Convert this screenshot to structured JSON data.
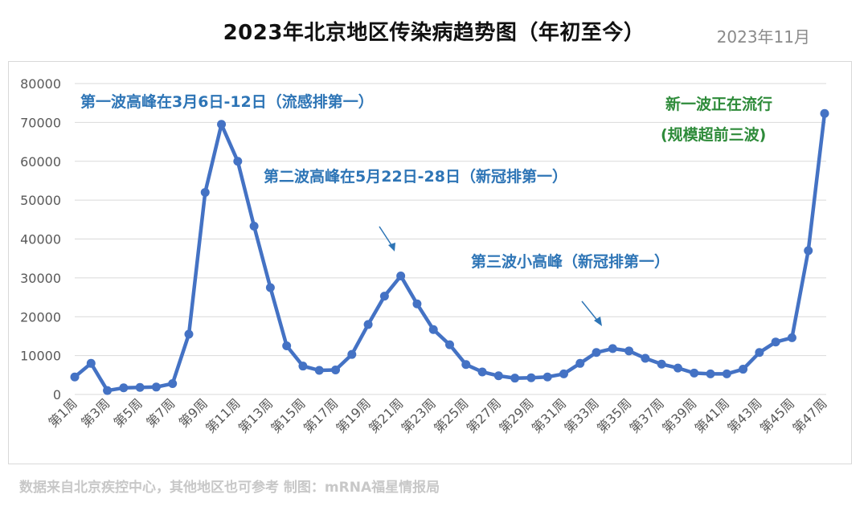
{
  "title": "2023年北京地区传染病趋势图（年初至今）",
  "date": "2023年11月",
  "source": "数据来自北京疾控中心，其他地区也可参考  制图：mRNA福星情报局",
  "colors": {
    "line": "#4472c4",
    "annotation_blue": "#2e75b6",
    "annotation_green": "#2e8b3a",
    "grid": "#d9d9d9",
    "axis_text": "#595959"
  },
  "chart_data": {
    "type": "line",
    "title": "2023年北京地区传染病趋势图（年初至今）",
    "xlabel": "",
    "ylabel": "",
    "ylim": [
      0,
      80000
    ],
    "yticks": [
      "0",
      "10000",
      "20000",
      "30000",
      "40000",
      "50000",
      "60000",
      "70000",
      "80000"
    ],
    "grid": true,
    "categories": [
      "第1周",
      "第2周",
      "第3周",
      "第4周",
      "第5周",
      "第6周",
      "第7周",
      "第8周",
      "第9周",
      "第10周",
      "第11周",
      "第12周",
      "第13周",
      "第14周",
      "第15周",
      "第16周",
      "第17周",
      "第18周",
      "第19周",
      "第20周",
      "第21周",
      "第22周",
      "第23周",
      "第24周",
      "第25周",
      "第26周",
      "第27周",
      "第28周",
      "第29周",
      "第30周",
      "第31周",
      "第32周",
      "第33周",
      "第34周",
      "第35周",
      "第36周",
      "第37周",
      "第38周",
      "第39周",
      "第40周",
      "第41周",
      "第42周",
      "第43周",
      "第44周",
      "第45周",
      "第46周",
      "第47周"
    ],
    "tick_labels": [
      "第1周",
      "第3周",
      "第5周",
      "第7周",
      "第9周",
      "第11周",
      "第13周",
      "第15周",
      "第17周",
      "第19周",
      "第21周",
      "第23周",
      "第25周",
      "第27周",
      "第29周",
      "第31周",
      "第33周",
      "第35周",
      "第37周",
      "第39周",
      "第41周",
      "第43周",
      "第45周",
      "第47周"
    ],
    "series": [
      {
        "values": [
          4500,
          8000,
          1000,
          1700,
          1800,
          1900,
          2800,
          15500,
          52000,
          69500,
          60000,
          43300,
          27500,
          12500,
          7300,
          6200,
          6300,
          10300,
          18000,
          25300,
          30500,
          23300,
          16700,
          12800,
          7700,
          5800,
          4800,
          4200,
          4300,
          4500,
          5300,
          8000,
          10800,
          11800,
          11200,
          9300,
          7800,
          6800,
          5500,
          5300,
          5300,
          6500,
          10800,
          13500,
          14600,
          37000,
          72300
        ]
      }
    ],
    "annotations": [
      {
        "text": "第一波高峰在3月6日-12日（流感排第一）",
        "color": "#2e75b6"
      },
      {
        "text": "第二波高峰在5月22日-28日（新冠排第一）",
        "color": "#2e75b6"
      },
      {
        "text": "第三波小高峰（新冠排第一）",
        "color": "#2e75b6"
      },
      {
        "text": "新一波正在流行",
        "color": "#2e8b3a"
      },
      {
        "text": "(规模超前三波)",
        "color": "#2e8b3a"
      }
    ]
  }
}
